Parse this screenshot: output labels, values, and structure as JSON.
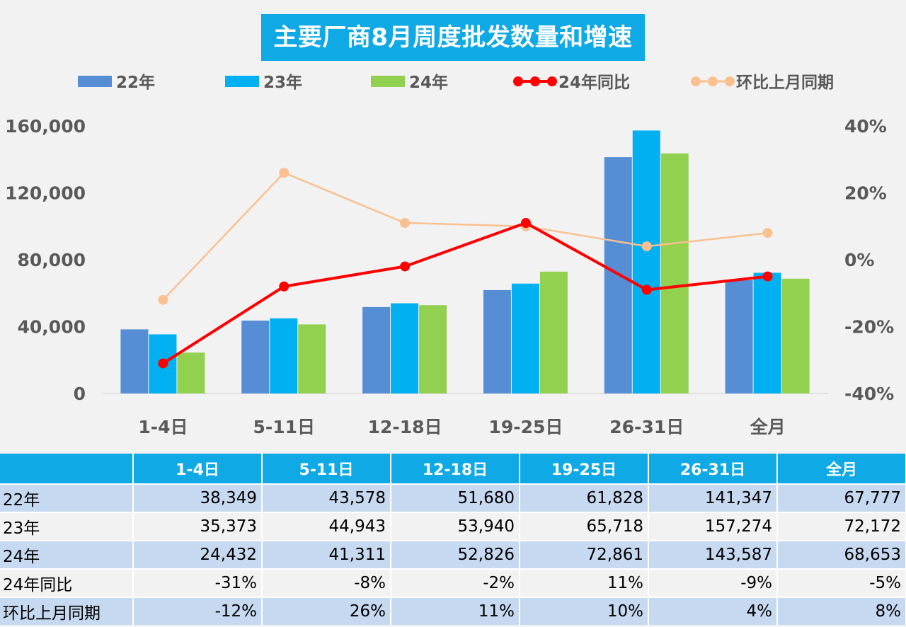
{
  "chart_data": {
    "type": "bar",
    "title": "主要厂商8月周度批发数量和增速",
    "categories": [
      "1-4日",
      "5-11日",
      "12-18日",
      "19-25日",
      "26-31日",
      "全月"
    ],
    "series": [
      {
        "name": "22年",
        "kind": "bar",
        "color": "#558ed5",
        "values": [
          38349,
          43578,
          51680,
          61828,
          141347,
          67777
        ]
      },
      {
        "name": "23年",
        "kind": "bar",
        "color": "#00b0f0",
        "values": [
          35373,
          44943,
          53940,
          65718,
          157274,
          72172
        ]
      },
      {
        "name": "24年",
        "kind": "bar",
        "color": "#92d050",
        "values": [
          24432,
          41311,
          52826,
          72861,
          143587,
          68653
        ]
      },
      {
        "name": "24年同比",
        "kind": "line",
        "axis": "right",
        "color": "#ff0000",
        "values": [
          -31,
          -8,
          -2,
          11,
          -9,
          -5
        ]
      },
      {
        "name": "环比上月同期",
        "kind": "line",
        "axis": "right",
        "color": "#fac090",
        "values": [
          -12,
          26,
          11,
          10,
          4,
          8
        ]
      }
    ],
    "left_axis": {
      "min": 0,
      "max": 160000,
      "ticks": [
        "0",
        "40,000",
        "80,000",
        "120,000",
        "160,000"
      ]
    },
    "right_axis": {
      "min": -40,
      "max": 40,
      "ticks": [
        "-40%",
        "-20%",
        "0%",
        "20%",
        "40%"
      ]
    },
    "legend_position": "top"
  },
  "table": {
    "header": [
      "",
      "1-4日",
      "5-11日",
      "12-18日",
      "19-25日",
      "26-31日",
      "全月"
    ],
    "rows": [
      {
        "label": "22年",
        "cells": [
          "38,349",
          "43,578",
          "51,680",
          "61,828",
          "141,347",
          "67,777"
        ]
      },
      {
        "label": "23年",
        "cells": [
          "35,373",
          "44,943",
          "53,940",
          "65,718",
          "157,274",
          "72,172"
        ]
      },
      {
        "label": "24年",
        "cells": [
          "24,432",
          "41,311",
          "52,826",
          "72,861",
          "143,587",
          "68,653"
        ]
      },
      {
        "label": "24年同比",
        "cells": [
          "-31%",
          "-8%",
          "-2%",
          "11%",
          "-9%",
          "-5%"
        ]
      },
      {
        "label": "环比上月同期",
        "cells": [
          "-12%",
          "26%",
          "11%",
          "10%",
          "4%",
          "8%"
        ]
      }
    ]
  }
}
